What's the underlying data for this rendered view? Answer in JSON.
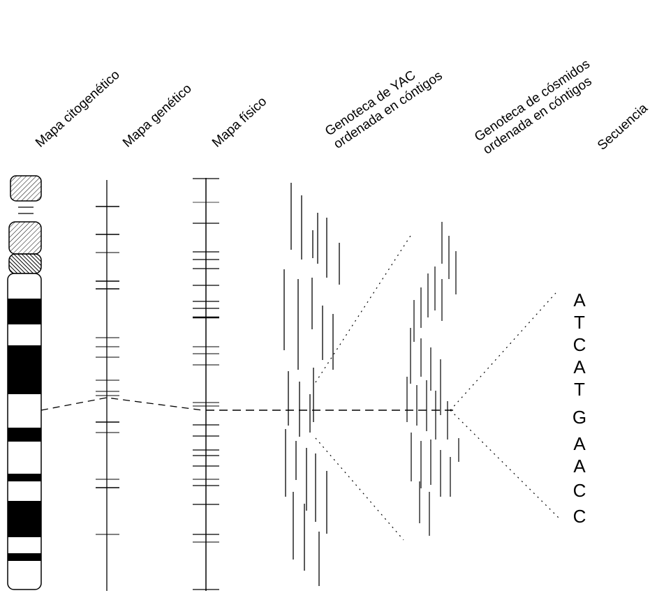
{
  "columns": {
    "cytogenetic": "Mapa citogenético",
    "genetic": "Mapa genético",
    "physical": "Mapa físico",
    "yac": [
      "Genoteca de YAC",
      "ordenada en cóntigos"
    ],
    "cosmid": [
      "Genoteca de cósmidos",
      "ordenada en cóntigos"
    ],
    "sequence": "Secuencia"
  },
  "sequence": [
    "A",
    "T",
    "C",
    "A",
    "T",
    "G",
    "A",
    "A",
    "C",
    "C"
  ],
  "colors": {
    "ink": "#000000",
    "background": "#ffffff"
  }
}
